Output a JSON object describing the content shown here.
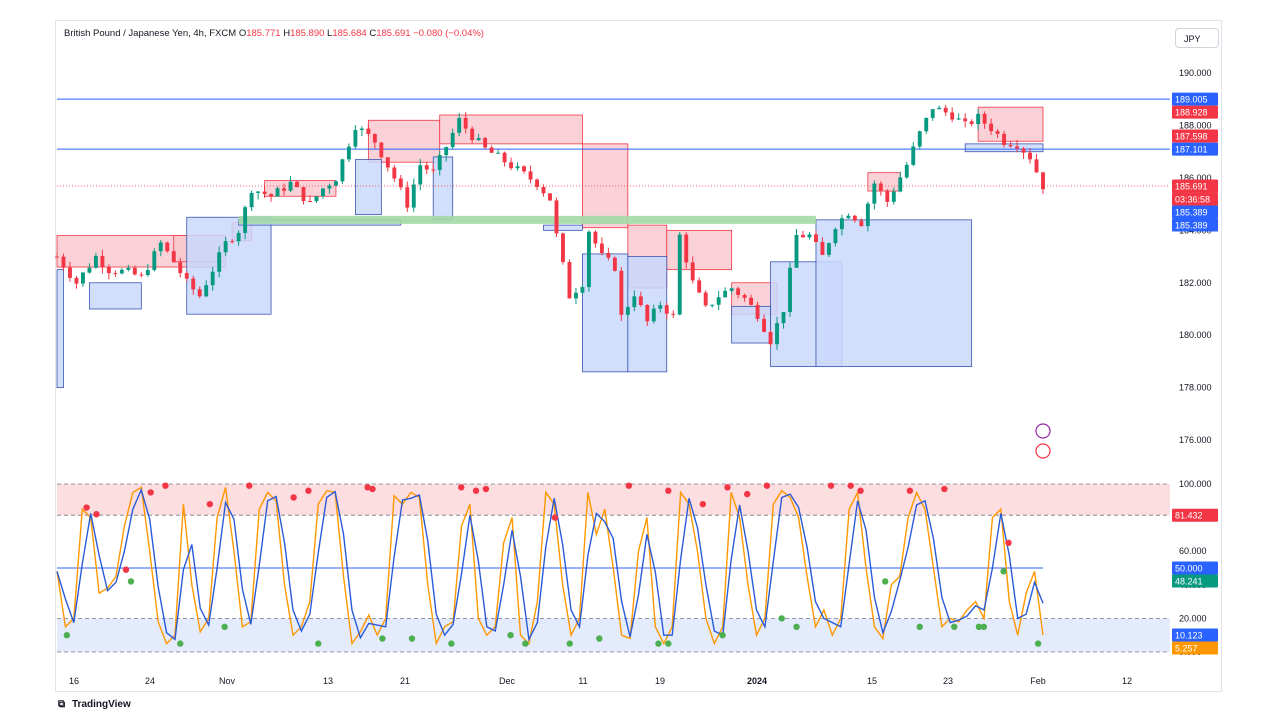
{
  "header": {
    "symbol": "British Pound / Japanese Yen, 4h, FXCM",
    "o_label": "O",
    "o": "185.771",
    "h_label": "H",
    "h": "185.890",
    "l_label": "L",
    "l": "185.684",
    "c_label": "C",
    "c": "185.691",
    "change": "−0.080 (−0.04%)"
  },
  "currency": "JPY",
  "brand": "TradingView",
  "colors": {
    "up": "#089981",
    "down": "#f23645",
    "supply": "#f8c9cf",
    "demand": "#c9d8fb",
    "green_band": "#a3d9a5",
    "hline": "#2962ff",
    "k_line": "#ff9800",
    "d_line": "#2a5bd7"
  },
  "chart_data": [
    {
      "type": "candlestick",
      "title": "British Pound / Japanese Yen, 4h, FXCM",
      "ylim": [
        176.0,
        190.5
      ],
      "y_ticks": [
        "190.000",
        "188.000",
        "186.000",
        "184.000",
        "182.000",
        "180.000",
        "178.000",
        "176.000"
      ],
      "x_ticks": [
        "16",
        "24",
        "Nov",
        "13",
        "21",
        "Dec",
        "11",
        "19",
        "2024",
        "15",
        "23",
        "Feb",
        "12"
      ],
      "grid": false,
      "hlines": [
        189.005,
        187.101
      ],
      "green_band_level": 184.4,
      "last_price": 185.691,
      "countdown": "03:36:58",
      "price_tags": [
        {
          "label": "189.005",
          "value": 189.005,
          "color": "#2962ff"
        },
        {
          "label": "188.928",
          "value": 188.928,
          "color": "#f23645"
        },
        {
          "label": "187.598",
          "value": 187.598,
          "color": "#f23645"
        },
        {
          "label": "187.101",
          "value": 187.101,
          "color": "#2962ff"
        },
        {
          "label": "185.691",
          "value": 185.691,
          "color": "#f23645"
        },
        {
          "label": "185.389",
          "value": 185.389,
          "color": "#2962ff"
        },
        {
          "label": "185.389",
          "value": 185.389,
          "color": "#2962ff"
        }
      ],
      "close_path": [
        [
          0,
          183.0
        ],
        [
          3,
          182.0
        ],
        [
          6,
          183.0
        ],
        [
          8,
          182.5
        ],
        [
          11,
          182.4
        ],
        [
          13,
          182.2
        ],
        [
          16,
          183.5
        ],
        [
          18,
          182.8
        ],
        [
          20,
          182.0
        ],
        [
          22,
          181.5
        ],
        [
          26,
          183.5
        ],
        [
          28,
          184.0
        ],
        [
          30,
          185.6
        ],
        [
          33,
          185.3
        ],
        [
          36,
          185.8
        ],
        [
          39,
          185.0
        ],
        [
          41,
          185.6
        ],
        [
          43,
          186.0
        ],
        [
          46,
          188.0
        ],
        [
          49,
          187.4
        ],
        [
          52,
          186.0
        ],
        [
          54,
          185.0
        ],
        [
          56,
          186.5
        ],
        [
          58,
          186.2
        ],
        [
          60,
          187.2
        ],
        [
          62,
          188.2
        ],
        [
          64,
          187.6
        ],
        [
          66,
          187.1
        ],
        [
          68,
          186.8
        ],
        [
          71,
          186.3
        ],
        [
          74,
          185.8
        ],
        [
          76,
          185.2
        ],
        [
          77,
          183.8
        ],
        [
          79,
          181.5
        ],
        [
          81,
          182.0
        ],
        [
          82,
          184.0
        ],
        [
          84,
          183.0
        ],
        [
          86,
          182.6
        ],
        [
          87,
          180.7
        ],
        [
          89,
          181.6
        ],
        [
          91,
          180.5
        ],
        [
          93,
          181.2
        ],
        [
          95,
          180.7
        ],
        [
          96,
          183.8
        ],
        [
          98,
          182.0
        ],
        [
          100,
          181.0
        ],
        [
          102,
          181.5
        ],
        [
          104,
          181.8
        ],
        [
          106,
          181.4
        ],
        [
          108,
          180.8
        ],
        [
          110,
          179.8
        ],
        [
          112,
          181.0
        ],
        [
          114,
          183.8
        ],
        [
          116,
          183.8
        ],
        [
          118,
          183.0
        ],
        [
          120,
          184.2
        ],
        [
          122,
          184.7
        ],
        [
          124,
          184.3
        ],
        [
          126,
          185.8
        ],
        [
          128,
          185.1
        ],
        [
          131,
          186.5
        ],
        [
          133,
          187.7
        ],
        [
          135,
          188.7
        ],
        [
          138,
          188.4
        ],
        [
          140,
          188.0
        ],
        [
          142,
          188.3
        ],
        [
          144,
          187.9
        ],
        [
          146,
          187.4
        ],
        [
          148,
          187.3
        ],
        [
          150,
          186.8
        ],
        [
          152,
          185.7
        ]
      ],
      "supply_zones": [
        {
          "x0": 0,
          "x1": 26,
          "top": 183.8,
          "bottom": 182.6
        },
        {
          "x0": 18,
          "x1": 26,
          "top": 183.8,
          "bottom": 182.8
        },
        {
          "x0": 27,
          "x1": 30,
          "top": 184.3,
          "bottom": 183.6
        },
        {
          "x0": 32,
          "x1": 43,
          "top": 185.9,
          "bottom": 185.3
        },
        {
          "x0": 48,
          "x1": 59,
          "top": 188.2,
          "bottom": 186.6
        },
        {
          "x0": 59,
          "x1": 81,
          "top": 188.4,
          "bottom": 187.3
        },
        {
          "x0": 81,
          "x1": 88,
          "top": 187.3,
          "bottom": 184.1
        },
        {
          "x0": 88,
          "x1": 94,
          "top": 184.2,
          "bottom": 181.8
        },
        {
          "x0": 94,
          "x1": 104,
          "top": 184.0,
          "bottom": 182.5
        },
        {
          "x0": 104,
          "x1": 111,
          "top": 182.0,
          "bottom": 180.8
        },
        {
          "x0": 125,
          "x1": 130,
          "top": 186.2,
          "bottom": 185.5
        },
        {
          "x0": 142,
          "x1": 152,
          "top": 188.7,
          "bottom": 187.4
        }
      ],
      "demand_zones": [
        {
          "x0": 0,
          "x1": 1,
          "top": 182.5,
          "bottom": 178.0
        },
        {
          "x0": 5,
          "x1": 13,
          "top": 182.0,
          "bottom": 181.0
        },
        {
          "x0": 20,
          "x1": 33,
          "top": 184.5,
          "bottom": 180.8
        },
        {
          "x0": 28,
          "x1": 53,
          "top": 184.4,
          "bottom": 184.2
        },
        {
          "x0": 46,
          "x1": 50,
          "top": 186.7,
          "bottom": 184.6
        },
        {
          "x0": 58,
          "x1": 61,
          "top": 186.8,
          "bottom": 184.4
        },
        {
          "x0": 75,
          "x1": 81,
          "top": 184.2,
          "bottom": 184.0
        },
        {
          "x0": 81,
          "x1": 88,
          "top": 183.1,
          "bottom": 178.6
        },
        {
          "x0": 88,
          "x1": 94,
          "top": 183.0,
          "bottom": 178.6
        },
        {
          "x0": 104,
          "x1": 110,
          "top": 181.1,
          "bottom": 179.7
        },
        {
          "x0": 110,
          "x1": 121,
          "top": 182.8,
          "bottom": 178.8
        },
        {
          "x0": 117,
          "x1": 141,
          "top": 184.4,
          "bottom": 178.8
        },
        {
          "x0": 140,
          "x1": 152,
          "top": 187.3,
          "bottom": 187.0
        }
      ]
    },
    {
      "type": "line",
      "title": "",
      "ylim": [
        0,
        100
      ],
      "y_ticks": [
        "100.000",
        "80.000",
        "60.000",
        "40.000",
        "20.000",
        "0.000"
      ],
      "overbought": 81.432,
      "oversold": 20,
      "midline": 50,
      "tags": [
        {
          "label": "81.432",
          "value": 81.432,
          "color": "#f23645"
        },
        {
          "label": "50.000",
          "value": 50.0,
          "color": "#2962ff"
        },
        {
          "label": "48.241",
          "value": 48.241,
          "color": "#089981"
        },
        {
          "label": "10.123",
          "value": 10.123,
          "color": "#2962ff"
        },
        {
          "label": "5.257",
          "value": 5.257,
          "color": "#ff9800"
        }
      ],
      "series": [
        {
          "values": [
            48,
            15,
            20,
            85,
            80,
            35,
            38,
            45,
            75,
            95,
            98,
            60,
            18,
            5,
            10,
            88,
            40,
            12,
            20,
            80,
            98,
            60,
            15,
            18,
            85,
            95,
            90,
            40,
            10,
            15,
            30,
            88,
            96,
            95,
            45,
            5,
            12,
            22,
            10,
            20,
            93,
            88,
            95,
            92,
            40,
            5,
            15,
            18,
            75,
            88,
            20,
            10,
            15,
            65,
            80,
            10,
            5,
            30,
            95,
            88,
            40,
            10,
            20,
            95,
            70,
            85,
            50,
            10,
            8,
            60,
            80,
            15,
            5,
            15,
            95,
            88,
            60,
            20,
            5,
            15,
            95,
            80,
            40,
            10,
            20,
            88,
            96,
            92,
            80,
            45,
            15,
            25,
            10,
            20,
            85,
            95,
            50,
            15,
            8,
            40,
            45,
            80,
            95,
            85,
            50,
            15,
            20,
            18,
            25,
            30,
            20,
            80,
            85,
            30,
            10,
            35,
            48,
            10
          ]
        }
      ],
      "markers_high": [
        [
          6,
          86
        ],
        [
          8,
          82
        ],
        [
          14,
          49
        ],
        [
          19,
          95
        ],
        [
          22,
          99
        ],
        [
          31,
          88
        ],
        [
          39,
          99
        ],
        [
          48,
          92
        ],
        [
          51,
          96
        ],
        [
          63,
          98
        ],
        [
          64,
          97
        ],
        [
          82,
          98
        ],
        [
          85,
          96
        ],
        [
          87,
          97
        ],
        [
          101,
          80
        ],
        [
          116,
          99
        ],
        [
          124,
          96
        ],
        [
          131,
          88
        ],
        [
          136,
          98
        ],
        [
          140,
          94
        ],
        [
          144,
          99
        ],
        [
          157,
          99
        ],
        [
          161,
          99
        ],
        [
          163,
          96
        ],
        [
          173,
          96
        ],
        [
          180,
          97
        ],
        [
          193,
          65
        ]
      ],
      "markers_low": [
        [
          2,
          10
        ],
        [
          15,
          42
        ],
        [
          25,
          5
        ],
        [
          34,
          15
        ],
        [
          53,
          5
        ],
        [
          66,
          8
        ],
        [
          72,
          8
        ],
        [
          80,
          5
        ],
        [
          92,
          10
        ],
        [
          95,
          5
        ],
        [
          104,
          5
        ],
        [
          110,
          8
        ],
        [
          122,
          5
        ],
        [
          124,
          5
        ],
        [
          135,
          10
        ],
        [
          147,
          20
        ],
        [
          150,
          15
        ],
        [
          168,
          42
        ],
        [
          175,
          15
        ],
        [
          182,
          15
        ],
        [
          187,
          15
        ],
        [
          188,
          15
        ],
        [
          192,
          48
        ],
        [
          199,
          5
        ]
      ]
    }
  ]
}
